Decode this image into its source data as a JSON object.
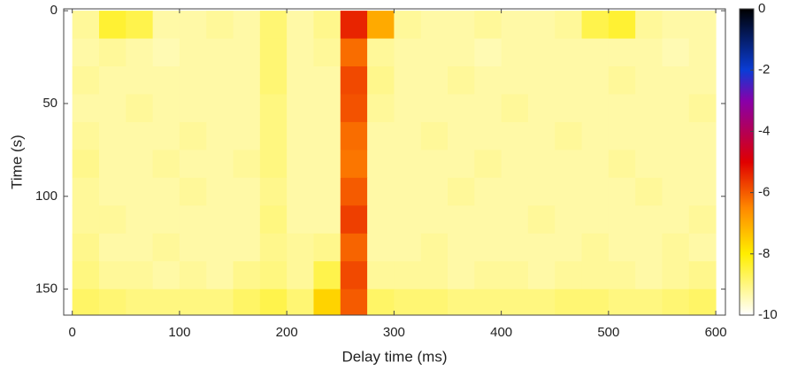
{
  "chart_data": {
    "type": "heatmap",
    "xlabel": "Delay time (ms)",
    "ylabel": "Time (s)",
    "xlim": [
      -8,
      609
    ],
    "ylim": [
      -1,
      164
    ],
    "xticks": [
      0,
      100,
      200,
      300,
      400,
      500,
      600
    ],
    "yticks": [
      0,
      50,
      100,
      150
    ],
    "y_reversed": true,
    "xbins": [
      0,
      25,
      50,
      75,
      100,
      125,
      150,
      175,
      200,
      225,
      250,
      275,
      300,
      325,
      350,
      375,
      400,
      425,
      450,
      475,
      500,
      525,
      550,
      575,
      600
    ],
    "ybins": [
      0,
      15,
      30,
      45,
      60,
      75,
      90,
      105,
      120,
      135,
      150,
      165
    ],
    "values": [
      [
        -9.2,
        -8.4,
        -8.6,
        -9.3,
        -9.3,
        -9.2,
        -9.3,
        -8.9,
        -9.3,
        -9.1,
        -5.4,
        -7.0,
        -9.2,
        -9.3,
        -9.3,
        -9.2,
        -9.3,
        -9.3,
        -9.2,
        -8.6,
        -8.4,
        -9.2,
        -9.3,
        -9.3
      ],
      [
        -9.3,
        -9.2,
        -9.3,
        -9.4,
        -9.3,
        -9.3,
        -9.3,
        -8.9,
        -9.3,
        -9.2,
        -6.2,
        -9.2,
        -9.3,
        -9.3,
        -9.3,
        -9.4,
        -9.3,
        -9.3,
        -9.3,
        -9.3,
        -9.3,
        -9.3,
        -9.4,
        -9.3
      ],
      [
        -9.2,
        -9.3,
        -9.3,
        -9.3,
        -9.3,
        -9.3,
        -9.3,
        -8.9,
        -9.3,
        -9.3,
        -5.8,
        -9.1,
        -9.3,
        -9.3,
        -9.2,
        -9.3,
        -9.3,
        -9.3,
        -9.3,
        -9.3,
        -9.2,
        -9.3,
        -9.3,
        -9.3
      ],
      [
        -9.3,
        -9.3,
        -9.2,
        -9.3,
        -9.3,
        -9.3,
        -9.3,
        -9.0,
        -9.3,
        -9.3,
        -5.9,
        -9.2,
        -9.3,
        -9.3,
        -9.3,
        -9.3,
        -9.2,
        -9.3,
        -9.3,
        -9.3,
        -9.3,
        -9.3,
        -9.3,
        -9.2
      ],
      [
        -9.2,
        -9.3,
        -9.3,
        -9.3,
        -9.2,
        -9.3,
        -9.3,
        -9.0,
        -9.3,
        -9.3,
        -6.2,
        -9.3,
        -9.3,
        -9.2,
        -9.3,
        -9.3,
        -9.3,
        -9.3,
        -9.2,
        -9.3,
        -9.3,
        -9.3,
        -9.3,
        -9.3
      ],
      [
        -9.1,
        -9.3,
        -9.3,
        -9.2,
        -9.3,
        -9.3,
        -9.2,
        -9.0,
        -9.3,
        -9.3,
        -6.3,
        -9.3,
        -9.3,
        -9.3,
        -9.3,
        -9.2,
        -9.3,
        -9.3,
        -9.3,
        -9.3,
        -9.2,
        -9.3,
        -9.3,
        -9.3
      ],
      [
        -9.2,
        -9.3,
        -9.3,
        -9.3,
        -9.2,
        -9.3,
        -9.3,
        -9.1,
        -9.3,
        -9.3,
        -6.0,
        -9.3,
        -9.3,
        -9.3,
        -9.2,
        -9.3,
        -9.3,
        -9.3,
        -9.3,
        -9.3,
        -9.3,
        -9.2,
        -9.3,
        -9.3
      ],
      [
        -9.2,
        -9.2,
        -9.3,
        -9.3,
        -9.3,
        -9.3,
        -9.3,
        -9.0,
        -9.3,
        -9.3,
        -5.7,
        -9.3,
        -9.3,
        -9.3,
        -9.3,
        -9.3,
        -9.3,
        -9.2,
        -9.3,
        -9.3,
        -9.3,
        -9.3,
        -9.3,
        -9.2
      ],
      [
        -9.1,
        -9.3,
        -9.3,
        -9.2,
        -9.3,
        -9.3,
        -9.3,
        -9.1,
        -9.2,
        -9.1,
        -6.1,
        -9.3,
        -9.3,
        -9.2,
        -9.3,
        -9.3,
        -9.3,
        -9.3,
        -9.3,
        -9.2,
        -9.3,
        -9.3,
        -9.2,
        -9.3
      ],
      [
        -9.0,
        -9.2,
        -9.2,
        -9.3,
        -9.2,
        -9.3,
        -9.1,
        -9.0,
        -9.2,
        -8.6,
        -5.8,
        -9.2,
        -9.2,
        -9.2,
        -9.3,
        -9.2,
        -9.2,
        -9.3,
        -9.2,
        -9.2,
        -9.2,
        -9.3,
        -9.2,
        -9.1
      ],
      [
        -8.8,
        -8.9,
        -9.0,
        -9.0,
        -9.0,
        -9.0,
        -8.8,
        -8.6,
        -8.9,
        -7.6,
        -6.0,
        -8.8,
        -8.9,
        -8.9,
        -9.0,
        -9.0,
        -9.0,
        -9.0,
        -8.9,
        -8.9,
        -9.0,
        -9.0,
        -8.9,
        -8.8
      ]
    ],
    "clim": [
      -10,
      0
    ],
    "cticks": [
      0,
      -2,
      -4,
      -6,
      -8,
      -10
    ],
    "colormap": [
      {
        "value": -10,
        "color": "#ffffff"
      },
      {
        "value": -8,
        "color": "#ffee00"
      },
      {
        "value": -6.5,
        "color": "#ff8800"
      },
      {
        "value": -5,
        "color": "#e00000"
      },
      {
        "value": -3,
        "color": "#8800aa"
      },
      {
        "value": -2,
        "color": "#0a3cd6"
      },
      {
        "value": 0,
        "color": "#000000"
      }
    ]
  }
}
